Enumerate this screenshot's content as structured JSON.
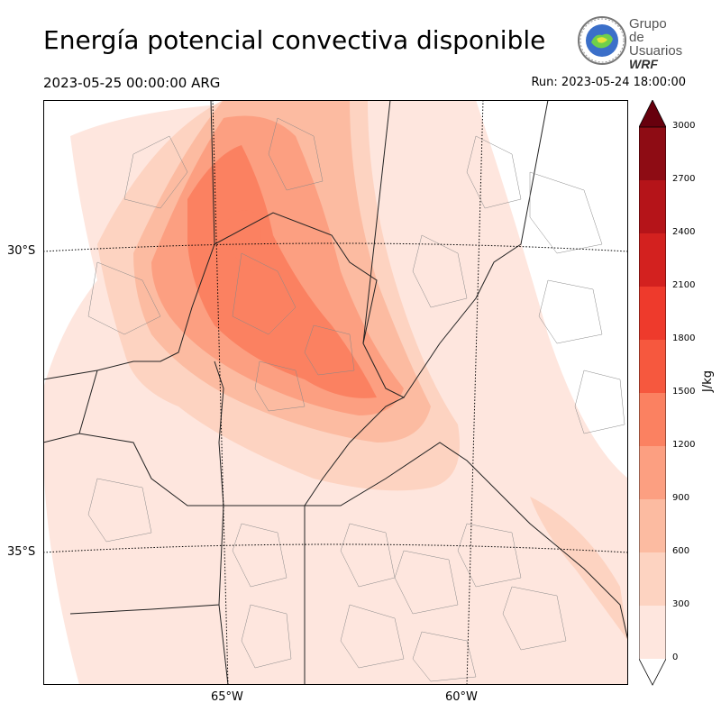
{
  "header": {
    "title": "Energía potencial convectiva disponible",
    "valid_time": "2023-05-25 00:00:00 ARG",
    "run_time": "Run: 2023-05-24 18:00:00"
  },
  "logo": {
    "line1": "Grupo de",
    "line2": "Usuarios",
    "line3": "WRF"
  },
  "map": {
    "lat_labels": [
      "30°S",
      "35°S"
    ],
    "lon_labels": [
      "65°W",
      "60°W"
    ]
  },
  "colorbar": {
    "unit": "J/kg",
    "ticks": [
      "0",
      "300",
      "600",
      "900",
      "1200",
      "1500",
      "1800",
      "2100",
      "2400",
      "2700",
      "3000"
    ],
    "colors": [
      "#fee6de",
      "#fdd3c1",
      "#fcbba1",
      "#fc9f81",
      "#fb8161",
      "#f6583e",
      "#ee3a2c",
      "#d3211f",
      "#b51419",
      "#8e0c14",
      "#67000d"
    ],
    "extend": "max"
  }
}
